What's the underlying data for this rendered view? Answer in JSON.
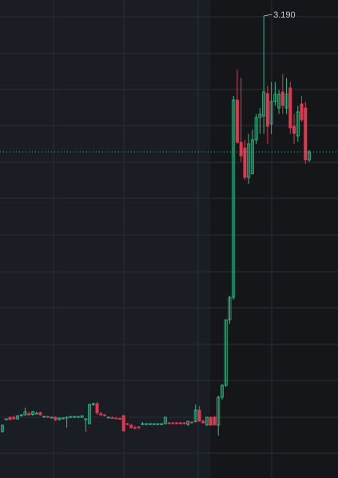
{
  "chart_data": {
    "type": "candlestick",
    "open": [
      1.11,
      1.17,
      1.182,
      1.182,
      1.174,
      1.19,
      1.194,
      1.2,
      1.196,
      1.2,
      1.206,
      1.186,
      1.186,
      1.182,
      1.182,
      1.17,
      1.178,
      1.178,
      1.182,
      1.182,
      1.182,
      1.182,
      1.17,
      1.15,
      1.246,
      1.25,
      1.2,
      1.194,
      1.182,
      1.18,
      1.178,
      1.176,
      1.19,
      1.15,
      1.142,
      1.13,
      1.134,
      1.146,
      1.146,
      1.146,
      1.146,
      1.146,
      1.146,
      1.15,
      1.154,
      1.154,
      1.154,
      1.154,
      1.154,
      1.146,
      1.158,
      1.16,
      1.218,
      1.162,
      1.144,
      1.182,
      1.182,
      1.142,
      1.282,
      1.342,
      1.67,
      1.782,
      2.77,
      2.558,
      2.53,
      2.382,
      2.4,
      2.57,
      2.682,
      2.69,
      2.802,
      2.65,
      2.762,
      2.73,
      2.81,
      2.73,
      2.83,
      2.638,
      2.59,
      2.75,
      2.73,
      2.47
    ],
    "high": [
      1.146,
      1.174,
      1.186,
      1.19,
      1.19,
      1.198,
      1.23,
      1.21,
      1.214,
      1.21,
      1.21,
      1.19,
      1.19,
      1.186,
      1.186,
      1.18,
      1.182,
      1.186,
      1.186,
      1.186,
      1.186,
      1.19,
      1.174,
      1.25,
      1.254,
      1.258,
      1.21,
      1.198,
      1.186,
      1.186,
      1.182,
      1.18,
      1.194,
      1.154,
      1.15,
      1.14,
      1.138,
      1.158,
      1.15,
      1.15,
      1.15,
      1.15,
      1.15,
      1.186,
      1.158,
      1.158,
      1.158,
      1.158,
      1.158,
      1.162,
      1.162,
      1.246,
      1.238,
      1.17,
      1.186,
      1.186,
      1.19,
      1.29,
      1.348,
      1.67,
      1.79,
      2.79,
      2.922,
      2.88,
      2.57,
      2.6,
      2.62,
      2.7,
      2.73,
      3.19,
      2.84,
      2.86,
      2.86,
      2.82,
      2.9,
      2.88,
      2.86,
      2.7,
      2.74,
      2.79,
      2.76,
      2.52
    ],
    "low": [
      1.106,
      1.166,
      1.17,
      1.17,
      1.17,
      1.186,
      1.19,
      1.19,
      1.19,
      1.196,
      1.19,
      1.182,
      1.178,
      1.178,
      1.162,
      1.166,
      1.174,
      1.13,
      1.178,
      1.178,
      1.178,
      1.178,
      1.11,
      1.146,
      1.238,
      1.194,
      1.19,
      1.186,
      1.178,
      1.174,
      1.174,
      1.17,
      1.11,
      1.142,
      1.126,
      1.122,
      1.122,
      1.142,
      1.142,
      1.142,
      1.142,
      1.142,
      1.142,
      1.146,
      1.146,
      1.146,
      1.146,
      1.146,
      1.146,
      1.138,
      1.15,
      1.156,
      1.16,
      1.15,
      1.138,
      1.14,
      1.14,
      1.09,
      1.27,
      1.334,
      1.65,
      1.77,
      2.55,
      2.46,
      2.37,
      2.35,
      2.4,
      2.55,
      2.6,
      2.6,
      2.55,
      2.6,
      2.74,
      2.7,
      2.7,
      2.7,
      2.6,
      2.55,
      2.56,
      2.66,
      2.45,
      2.46
    ],
    "close": [
      1.142,
      1.174,
      1.17,
      1.174,
      1.19,
      1.194,
      1.21,
      1.194,
      1.21,
      1.202,
      1.194,
      1.186,
      1.182,
      1.182,
      1.17,
      1.178,
      1.178,
      1.182,
      1.186,
      1.186,
      1.186,
      1.19,
      1.174,
      1.246,
      1.25,
      1.204,
      1.194,
      1.19,
      1.182,
      1.178,
      1.176,
      1.174,
      1.114,
      1.146,
      1.13,
      1.126,
      1.13,
      1.15,
      1.15,
      1.15,
      1.15,
      1.15,
      1.15,
      1.182,
      1.15,
      1.15,
      1.15,
      1.15,
      1.15,
      1.162,
      1.154,
      1.218,
      1.162,
      1.154,
      1.182,
      1.142,
      1.144,
      1.282,
      1.342,
      1.67,
      1.782,
      2.77,
      2.558,
      2.49,
      2.382,
      2.55,
      2.57,
      2.682,
      2.698,
      2.81,
      2.638,
      2.762,
      2.798,
      2.798,
      2.742,
      2.798,
      2.63,
      2.602,
      2.71,
      2.67,
      2.47,
      2.51
    ],
    "up_color": "#2ebd85",
    "down_color": "#e0384f",
    "ylim": [
      0.878,
      3.27
    ],
    "annotation": {
      "value": 3.19,
      "label": "3.190"
    }
  }
}
